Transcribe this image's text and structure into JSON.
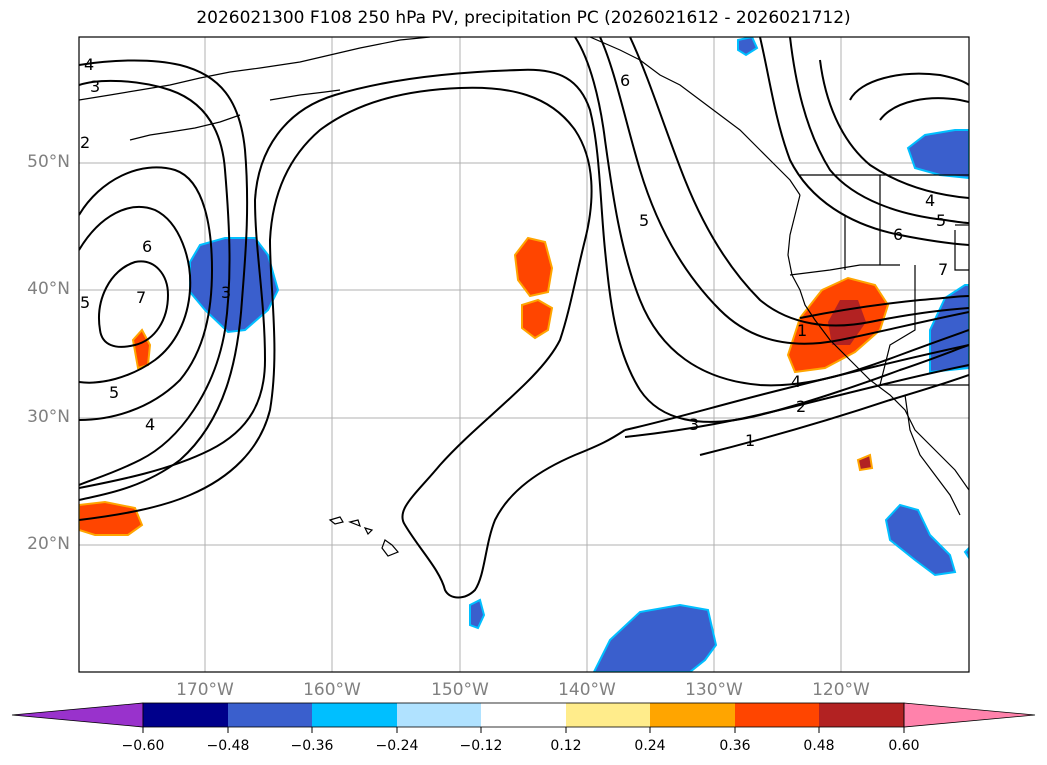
{
  "title": "2026021300 F108 250 hPa PV, precipitation PC (2026021612 - 2026021712)",
  "lat_labels": [
    "50°N",
    "40°N",
    "30°N",
    "20°N"
  ],
  "lon_labels": [
    "170°W",
    "160°W",
    "150°W",
    "140°W",
    "130°W",
    "120°W"
  ],
  "contour_labels": [
    "4",
    "3",
    "2",
    "5",
    "6",
    "7",
    "3",
    "5",
    "4",
    "6",
    "5",
    "4",
    "3",
    "2",
    "1",
    "6",
    "5",
    "4",
    "7",
    "1"
  ],
  "colorbar": {
    "colors": [
      "#9932cc",
      "#00008b",
      "#3a5fcd",
      "#00bfff",
      "#b0e2ff",
      "#ffffff",
      "#ffec8b",
      "#ffa500",
      "#ff4500",
      "#b22222",
      "#ff82ab"
    ],
    "labels": [
      "−0.60",
      "−0.48",
      "−0.36",
      "−0.24",
      "−0.12",
      "0.12",
      "0.24",
      "0.36",
      "0.48",
      "0.60"
    ]
  }
}
